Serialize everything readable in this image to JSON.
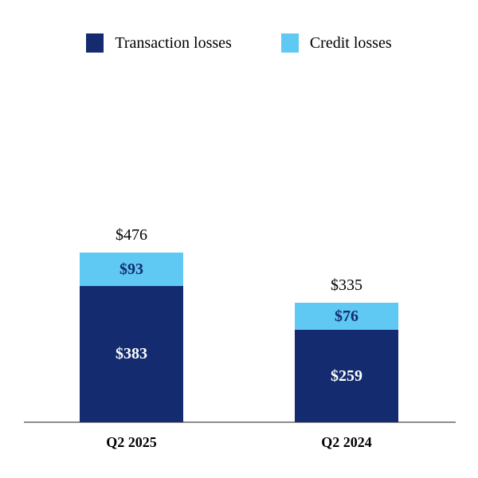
{
  "legend": {
    "items": [
      {
        "label": "Transaction losses",
        "color": "#142b6f"
      },
      {
        "label": "Credit losses",
        "color": "#5fc9f3"
      }
    ]
  },
  "chart_data": {
    "type": "bar",
    "stacked": true,
    "title": "",
    "categories": [
      "Q2 2025",
      "Q2 2024"
    ],
    "series": [
      {
        "name": "Transaction losses",
        "color": "#142b6f",
        "label_color": "#ffffff",
        "values": [
          383,
          259
        ]
      },
      {
        "name": "Credit losses",
        "color": "#5fc9f3",
        "label_color": "#142b6f",
        "values": [
          93,
          76
        ]
      }
    ],
    "totals": [
      476,
      335
    ],
    "total_labels": [
      "$476",
      "$335"
    ],
    "segment_labels": [
      [
        "$383",
        "$259"
      ],
      [
        "$93",
        "$76"
      ]
    ],
    "value_prefix": "$",
    "ylim": [
      0,
      476
    ],
    "grid": false,
    "legend_position": "top",
    "axis_color": "#8c8c8c"
  }
}
